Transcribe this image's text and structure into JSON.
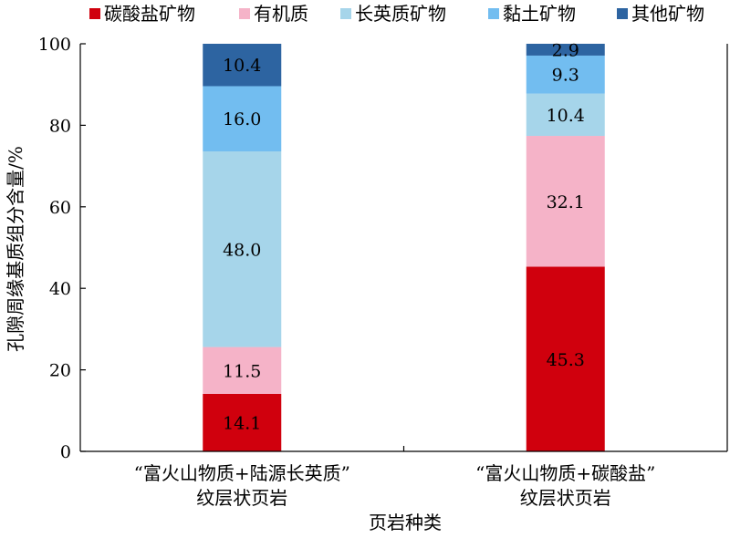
{
  "chart_data": {
    "type": "bar",
    "stacked": true,
    "xlabel": "页岩种类",
    "ylabel": "孔隙周缘基质组分含量/%",
    "ylim": [
      0,
      100
    ],
    "yticks": [
      0,
      20,
      40,
      60,
      80,
      100
    ],
    "legend_position": "top",
    "categories": [
      [
        "“富火山物质+陆源长英质”",
        "纹层状页岩"
      ],
      [
        "“富火山物质+碳酸盐”",
        "纹层状页岩"
      ]
    ],
    "series": [
      {
        "name": "碳酸盐矿物",
        "color": "#d0000d",
        "values": [
          14.1,
          45.3
        ],
        "labels": [
          "14.1",
          "45.3"
        ]
      },
      {
        "name": "有机质",
        "color": "#f5b3c8",
        "values": [
          11.5,
          32.1
        ],
        "labels": [
          "11.5",
          "32.1"
        ]
      },
      {
        "name": "长英质矿物",
        "color": "#a6d5ea",
        "values": [
          48.0,
          10.4
        ],
        "labels": [
          "48.0",
          "10.4"
        ]
      },
      {
        "name": "黏土矿物",
        "color": "#72bdf0",
        "values": [
          16.0,
          9.3
        ],
        "labels": [
          "16.0",
          "9.3"
        ]
      },
      {
        "name": "其他矿物",
        "color": "#2d64a1",
        "values": [
          10.4,
          2.9
        ],
        "labels": [
          "10.4",
          "2.9"
        ]
      }
    ]
  }
}
